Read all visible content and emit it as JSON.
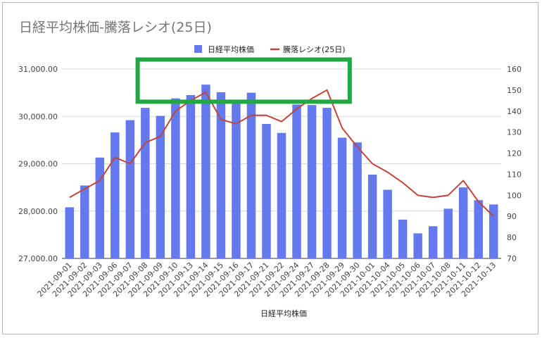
{
  "chart_data": {
    "type": "bar+line",
    "title": "日経平均株価-騰落レシオ(25日)",
    "xlabel": "日経平均株価",
    "categories": [
      "2021-09-01",
      "2021-09-02",
      "2021-09-03",
      "2021-09-06",
      "2021-09-07",
      "2021-09-08",
      "2021-09-09",
      "2021-09-10",
      "2021-09-13",
      "2021-09-14",
      "2021-09-15",
      "2021-09-16",
      "2021-09-17",
      "2021-09-21",
      "2021-09-22",
      "2021-09-24",
      "2021-09-27",
      "2021-09-28",
      "2021-09-29",
      "2021-09-30",
      "2021-10-01",
      "2021-10-04",
      "2021-10-05",
      "2021-10-06",
      "2021-10-07",
      "2021-10-08",
      "2021-10-11",
      "2021-10-12",
      "2021-10-13"
    ],
    "series": [
      {
        "name": "日経平均株価",
        "kind": "bar",
        "axis": "left",
        "color": "#6479ee",
        "values": [
          28080,
          28540,
          29130,
          29660,
          29920,
          30180,
          30010,
          30380,
          30450,
          30670,
          30510,
          30320,
          30500,
          29840,
          29650,
          30250,
          30240,
          30180,
          29550,
          29450,
          28770,
          28450,
          27820,
          27530,
          27680,
          28050,
          28500,
          28230,
          28140
        ]
      },
      {
        "name": "騰落レシオ(25日)",
        "kind": "line",
        "axis": "right",
        "color": "#c0463a",
        "values": [
          99,
          103,
          107,
          118,
          115,
          125,
          128,
          140,
          145,
          149,
          136,
          134,
          138,
          138,
          135,
          141,
          146,
          150,
          132,
          123,
          115,
          111,
          106,
          100,
          99,
          100,
          107,
          97,
          90
        ]
      }
    ],
    "y_left": {
      "min": 27000,
      "max": 31000,
      "ticks": [
        "27,000.00",
        "28,000.00",
        "29,000.00",
        "30,000.00",
        "31,000.00"
      ]
    },
    "y_right": {
      "min": 70,
      "max": 160,
      "ticks": [
        "70",
        "80",
        "90",
        "100",
        "110",
        "120",
        "130",
        "140",
        "150",
        "160"
      ]
    },
    "legend": {
      "position": "top"
    },
    "grid": true,
    "annotation": {
      "type": "rectangle",
      "color": "#21a843",
      "x_from": "2021-09-08",
      "x_to": "2021-09-29",
      "y_from_left": 30310,
      "y_to_left": 31200
    }
  }
}
